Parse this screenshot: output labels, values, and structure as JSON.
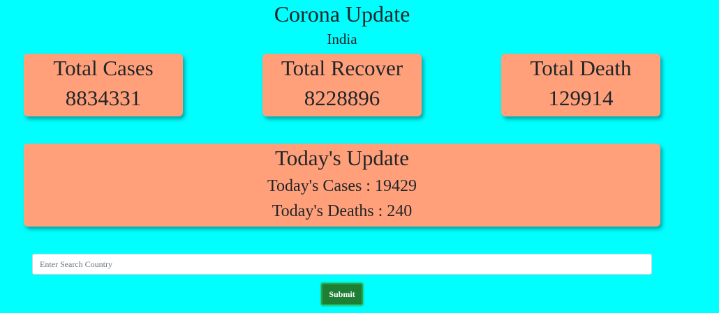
{
  "header": {
    "title": "Corona Update",
    "country": "India"
  },
  "stats": {
    "total_cases": {
      "label": "Total Cases",
      "value": "8834331"
    },
    "total_recover": {
      "label": "Total Recover",
      "value": "8228896"
    },
    "total_death": {
      "label": "Total Death",
      "value": "129914"
    }
  },
  "today": {
    "title": "Today's Update",
    "cases_text": "Today's Cases : 19429",
    "deaths_text": "Today's Deaths : 240"
  },
  "search": {
    "placeholder": "Enter Search Country",
    "value": "",
    "submit_label": "Submit"
  },
  "colors": {
    "background": "#00ffff",
    "card": "#ffa07a",
    "button": "#1e7e34"
  }
}
